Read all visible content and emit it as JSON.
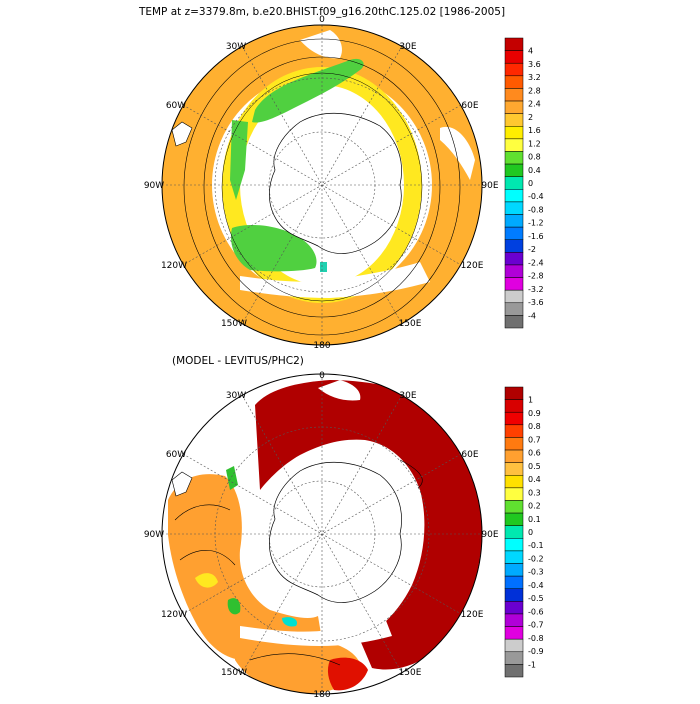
{
  "top_panel": {
    "title": "TEMP at z=3379.8m, b.e20.BHIST.f09_g16.20thC.125.02 [1986-2005]",
    "longitude_labels": {
      "lon0": "0",
      "lon30e": "30E",
      "lon60e": "60E",
      "lon90e": "90E",
      "lon120e": "120E",
      "lon150e": "150E",
      "lon180": "180",
      "lon150w": "150W",
      "lon120w": "120W",
      "lon90w": "90W",
      "lon60w": "60W",
      "lon30w": "30W"
    },
    "colorbar": {
      "labels": [
        "4",
        "3.6",
        "3.2",
        "2.8",
        "2.4",
        "2",
        "1.6",
        "1.2",
        "0.8",
        "0.4",
        "0",
        "-0.4",
        "-0.8",
        "-1.2",
        "-1.6",
        "-2",
        "-2.4",
        "-2.8",
        "-3.2",
        "-3.6",
        "-4"
      ],
      "colors": [
        "#c40000",
        "#e80000",
        "#ff2800",
        "#ff5a00",
        "#ff8a1e",
        "#ffa830",
        "#ffc830",
        "#ffee00",
        "#ffff40",
        "#60e030",
        "#20c820",
        "#00e8b0",
        "#00ffff",
        "#00d8ff",
        "#00aaff",
        "#007cff",
        "#0040e0",
        "#6a00d0",
        "#b000d8",
        "#e000e0",
        "#cccccc",
        "#999999",
        "#707070"
      ]
    }
  },
  "bottom_panel": {
    "title": "(MODEL - LEVITUS/PHC2)",
    "longitude_labels": {
      "lon0": "0",
      "lon30e": "30E",
      "lon60e": "60E",
      "lon90e": "90E",
      "lon120e": "120E",
      "lon150e": "150E",
      "lon180": "180",
      "lon150w": "150W",
      "lon120w": "120W",
      "lon90w": "90W",
      "lon60w": "60W",
      "lon30w": "30W"
    },
    "colorbar": {
      "labels": [
        "1",
        "0.9",
        "0.8",
        "0.7",
        "0.6",
        "0.5",
        "0.4",
        "0.3",
        "0.2",
        "0.1",
        "0",
        "-0.1",
        "-0.2",
        "-0.3",
        "-0.4",
        "-0.5",
        "-0.6",
        "-0.7",
        "-0.8",
        "-0.9",
        "-1"
      ],
      "colors": [
        "#b00000",
        "#d80000",
        "#f00000",
        "#ff4000",
        "#ff7a10",
        "#ffa030",
        "#ffc040",
        "#ffe000",
        "#ffff40",
        "#60e030",
        "#20c820",
        "#00e8b0",
        "#00ffff",
        "#00d8ff",
        "#00aaff",
        "#0070ff",
        "#0030d8",
        "#6a00d0",
        "#b000d8",
        "#e000e0",
        "#cccccc",
        "#999999",
        "#707070"
      ]
    }
  },
  "colors": {
    "top_yellow": "#ffe820",
    "top_light_orange": "#ffc840",
    "top_orange": "#ffa030",
    "top_green": "#50d040",
    "top_teal": "#20d0b0",
    "bottom_darkred": "#b00000",
    "bottom_orange": "#ffa030",
    "bottom_red": "#e01000",
    "bottom_green": "#30c030",
    "bottom_cyan": "#00e0d0",
    "land": "#ffffff"
  }
}
